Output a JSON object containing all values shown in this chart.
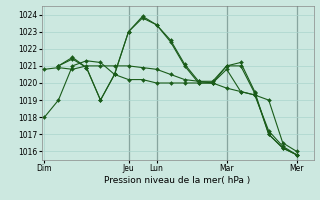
{
  "title": "",
  "xlabel": "Pression niveau de la mer( hPa )",
  "bg_color": "#cce8e0",
  "grid_color": "#aad4cc",
  "line_color": "#1a5c1a",
  "vline_color": "#3a3a3a",
  "ylim": [
    1015.5,
    1024.5
  ],
  "xlim": [
    -0.2,
    19.2
  ],
  "day_labels": [
    "Dim",
    "Jeu",
    "Lun",
    "Mar",
    "Mer"
  ],
  "day_positions": [
    0,
    6,
    8,
    13,
    18
  ],
  "vline_positions": [
    6,
    8,
    13,
    18
  ],
  "series": [
    {
      "x": [
        0,
        1,
        2,
        3,
        4,
        5,
        6,
        7,
        8,
        9,
        10,
        11,
        12,
        13,
        14,
        15,
        16,
        17,
        18
      ],
      "y": [
        1020.8,
        1020.9,
        1020.8,
        1021.0,
        1021.0,
        1021.0,
        1021.0,
        1020.9,
        1020.8,
        1020.5,
        1020.2,
        1020.1,
        1020.0,
        1020.8,
        1019.5,
        1019.3,
        1019.0,
        1016.5,
        1016.0
      ]
    },
    {
      "x": [
        0,
        1,
        2,
        3,
        4,
        5,
        6,
        7,
        8,
        9,
        10,
        11,
        12,
        13,
        14,
        15,
        16,
        17,
        18
      ],
      "y": [
        1018.0,
        1019.0,
        1021.0,
        1021.3,
        1021.2,
        1020.5,
        1020.2,
        1020.2,
        1020.0,
        1020.0,
        1020.0,
        1020.0,
        1020.0,
        1019.7,
        1019.5,
        1019.3,
        1017.2,
        1016.3,
        1015.8
      ]
    },
    {
      "x": [
        1,
        2,
        3,
        4,
        5,
        6,
        7,
        8,
        9,
        10,
        11,
        12,
        13,
        14,
        15,
        16,
        17,
        18
      ],
      "y": [
        1021.0,
        1021.5,
        1020.9,
        1019.0,
        1020.5,
        1023.0,
        1023.8,
        1023.4,
        1022.5,
        1021.1,
        1020.1,
        1020.1,
        1021.0,
        1021.2,
        1019.5,
        1017.0,
        1016.2,
        1015.8
      ]
    },
    {
      "x": [
        1,
        2,
        3,
        4,
        5,
        6,
        7,
        8,
        9,
        10,
        11,
        12,
        13,
        14,
        15,
        16,
        17,
        18
      ],
      "y": [
        1021.0,
        1021.4,
        1020.9,
        1019.0,
        1020.5,
        1023.0,
        1023.9,
        1023.4,
        1022.4,
        1021.0,
        1020.0,
        1020.0,
        1021.0,
        1021.0,
        1019.4,
        1017.0,
        1016.2,
        1015.8
      ]
    }
  ],
  "yticks": [
    1016,
    1017,
    1018,
    1019,
    1020,
    1021,
    1022,
    1023,
    1024
  ],
  "xtick_font_size": 5.5,
  "ytick_font_size": 5.5,
  "xlabel_font_size": 6.5,
  "marker": "D",
  "marker_size": 2.0,
  "line_width": 0.8
}
